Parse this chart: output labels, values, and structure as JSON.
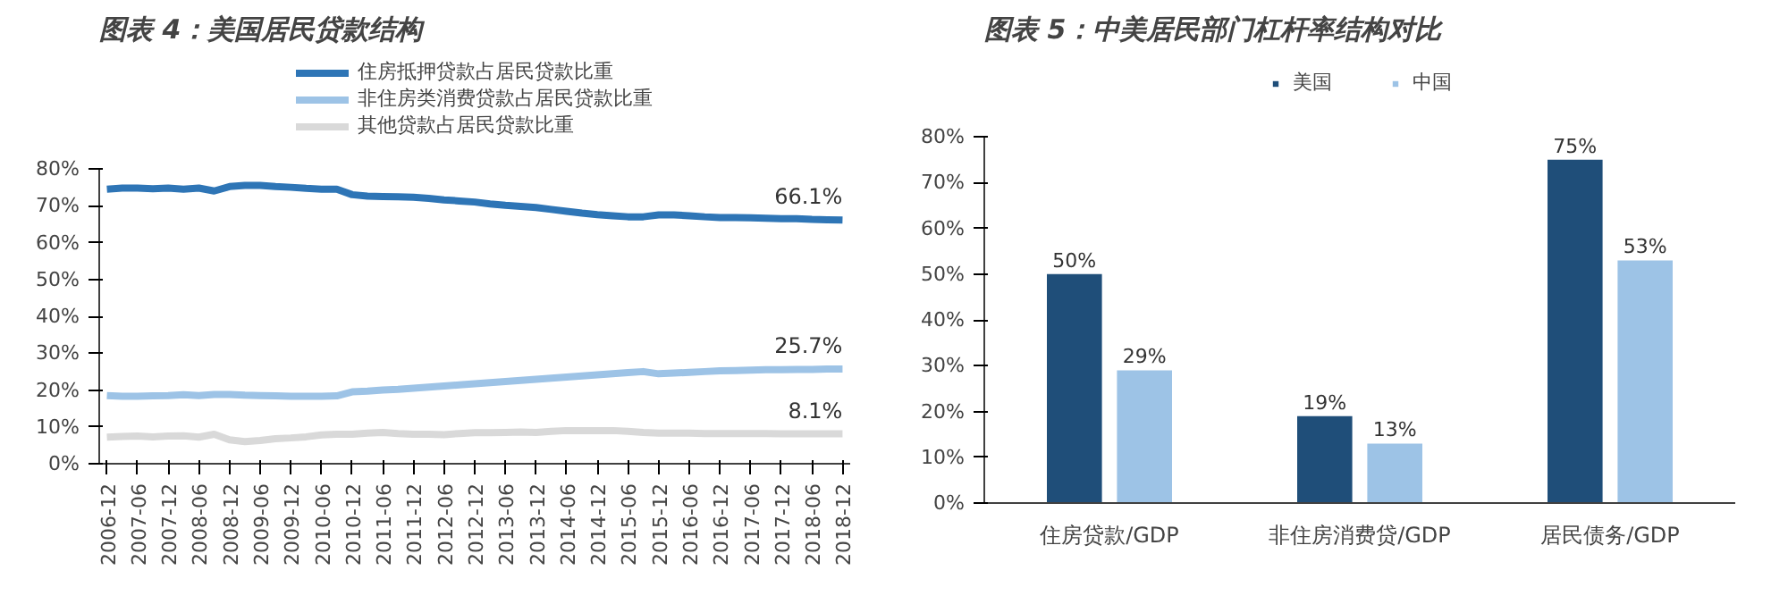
{
  "chart_data": [
    {
      "type": "line",
      "title": "图表 4：美国居民贷款结构",
      "categories": [
        "2006-12",
        null,
        "2007-06",
        null,
        "2007-12",
        null,
        "2008-06",
        null,
        "2008-12",
        null,
        "2009-06",
        null,
        "2009-12",
        null,
        "2010-06",
        null,
        "2010-12",
        null,
        "2011-06",
        null,
        "2011-12",
        null,
        "2012-06",
        null,
        "2012-12",
        null,
        "2013-06",
        null,
        "2013-12",
        null,
        "2014-06",
        null,
        "2014-12",
        null,
        "2015-06",
        null,
        "2015-12",
        null,
        "2016-06",
        null,
        "2016-12",
        null,
        "2017-06",
        null,
        "2017-12",
        null,
        "2018-06",
        null,
        "2018-12"
      ],
      "series": [
        {
          "name": "住房抵押贷款占居民贷款比重",
          "color": "#2e75b6",
          "values": [
            74.5,
            74.8,
            74.8,
            74.6,
            74.8,
            74.5,
            74.8,
            74.0,
            75.2,
            75.5,
            75.5,
            75.2,
            75.0,
            74.7,
            74.5,
            74.5,
            73.0,
            72.6,
            72.5,
            72.4,
            72.3,
            72.0,
            71.6,
            71.3,
            71.0,
            70.5,
            70.1,
            69.8,
            69.5,
            69.0,
            68.5,
            68.0,
            67.6,
            67.3,
            67.0,
            67.0,
            67.5,
            67.5,
            67.3,
            67.0,
            66.8,
            66.8,
            66.7,
            66.6,
            66.5,
            66.5,
            66.3,
            66.2,
            66.1
          ]
        },
        {
          "name": "非住房类消费贷款占居民贷款比重",
          "color": "#9dc3e6",
          "values": [
            18.5,
            18.3,
            18.3,
            18.4,
            18.5,
            18.7,
            18.5,
            18.8,
            18.8,
            18.6,
            18.5,
            18.4,
            18.3,
            18.3,
            18.3,
            18.4,
            19.5,
            19.7,
            20.0,
            20.2,
            20.5,
            20.8,
            21.1,
            21.4,
            21.7,
            22.0,
            22.3,
            22.6,
            22.9,
            23.2,
            23.5,
            23.8,
            24.1,
            24.4,
            24.7,
            25.0,
            24.4,
            24.6,
            24.8,
            25.0,
            25.2,
            25.3,
            25.4,
            25.5,
            25.5,
            25.6,
            25.6,
            25.7,
            25.7
          ]
        },
        {
          "name": "其他贷款占居民贷款比重",
          "color": "#d9d9d9",
          "values": [
            7.2,
            7.4,
            7.5,
            7.3,
            7.5,
            7.6,
            7.2,
            8.0,
            6.5,
            6.0,
            6.3,
            6.8,
            7.0,
            7.3,
            7.8,
            8.0,
            8.0,
            8.3,
            8.5,
            8.2,
            8.0,
            8.0,
            7.9,
            8.2,
            8.4,
            8.4,
            8.5,
            8.6,
            8.5,
            8.8,
            9.0,
            9.0,
            9.0,
            9.0,
            8.8,
            8.5,
            8.3,
            8.3,
            8.3,
            8.2,
            8.2,
            8.2,
            8.2,
            8.2,
            8.1,
            8.1,
            8.1,
            8.1,
            8.1
          ]
        }
      ],
      "ylim": [
        0,
        80
      ],
      "yticks": [
        {
          "value": 0,
          "label": "0%"
        },
        {
          "value": 10,
          "label": "10%"
        },
        {
          "value": 20,
          "label": "20%"
        },
        {
          "value": 30,
          "label": "30%"
        },
        {
          "value": 40,
          "label": "40%"
        },
        {
          "value": 50,
          "label": "50%"
        },
        {
          "value": 60,
          "label": "60%"
        },
        {
          "value": 70,
          "label": "70%"
        },
        {
          "value": 80,
          "label": "80%"
        }
      ],
      "annotations": [
        {
          "text": "66.1%",
          "x": "2018-12",
          "y": 66.1
        },
        {
          "text": "25.7%",
          "x": "2018-12",
          "y": 25.7
        },
        {
          "text": "8.1%",
          "x": "2018-12",
          "y": 8.1
        }
      ],
      "legend": "top",
      "grid": false
    },
    {
      "type": "bar",
      "title": "图表 5：中美居民部门杠杆率结构对比",
      "categories": [
        "住房贷款/GDP",
        "非住房消费贷/GDP",
        "居民债务/GDP"
      ],
      "series": [
        {
          "name": "美国",
          "color": "#1f4e79",
          "values": [
            50,
            19,
            75
          ]
        },
        {
          "name": "中国",
          "color": "#9dc3e6",
          "values": [
            29,
            13,
            53
          ]
        }
      ],
      "ylim": [
        0,
        80
      ],
      "yticks": [
        {
          "value": 0,
          "label": "0%"
        },
        {
          "value": 10,
          "label": "10%"
        },
        {
          "value": 20,
          "label": "20%"
        },
        {
          "value": 30,
          "label": "30%"
        },
        {
          "value": 40,
          "label": "40%"
        },
        {
          "value": 50,
          "label": "50%"
        },
        {
          "value": 60,
          "label": "60%"
        },
        {
          "value": 70,
          "label": "70%"
        },
        {
          "value": 80,
          "label": "80%"
        }
      ],
      "value_labels": [
        [
          "50%",
          "19%",
          "75%"
        ],
        [
          "29%",
          "13%",
          "53%"
        ]
      ],
      "legend": "top",
      "grid": false
    }
  ]
}
